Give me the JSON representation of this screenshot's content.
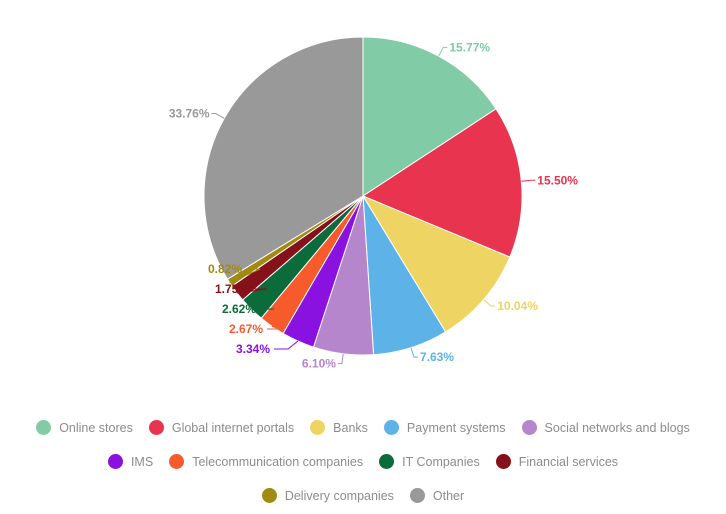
{
  "chart_data": {
    "type": "pie",
    "title": "",
    "legend_position": "bottom",
    "slices": [
      {
        "label": "Online stores",
        "value": 15.77,
        "display": "15.77%",
        "color": "#82cba7"
      },
      {
        "label": "Global internet portals",
        "value": 15.5,
        "display": "15.50%",
        "color": "#e8344f"
      },
      {
        "label": "Banks",
        "value": 10.04,
        "display": "10.04%",
        "color": "#eed462"
      },
      {
        "label": "Payment systems",
        "value": 7.63,
        "display": "7.63%",
        "color": "#5db2e8"
      },
      {
        "label": "Social networks and blogs",
        "value": 6.1,
        "display": "6.10%",
        "color": "#b586cb"
      },
      {
        "label": "IMS",
        "value": 3.34,
        "display": "3.34%",
        "color": "#8a12e0"
      },
      {
        "label": "Telecommunication companies",
        "value": 2.67,
        "display": "2.67%",
        "color": "#f75a2b"
      },
      {
        "label": "IT Companies",
        "value": 2.62,
        "display": "2.62%",
        "color": "#0c6b3a"
      },
      {
        "label": "Financial services",
        "value": 1.75,
        "display": "1.75%",
        "color": "#85111a"
      },
      {
        "label": "Delivery companies",
        "value": 0.82,
        "display": "0.82%",
        "color": "#a08a12"
      },
      {
        "label": "Other",
        "value": 33.76,
        "display": "33.76%",
        "color": "#999999"
      }
    ]
  }
}
